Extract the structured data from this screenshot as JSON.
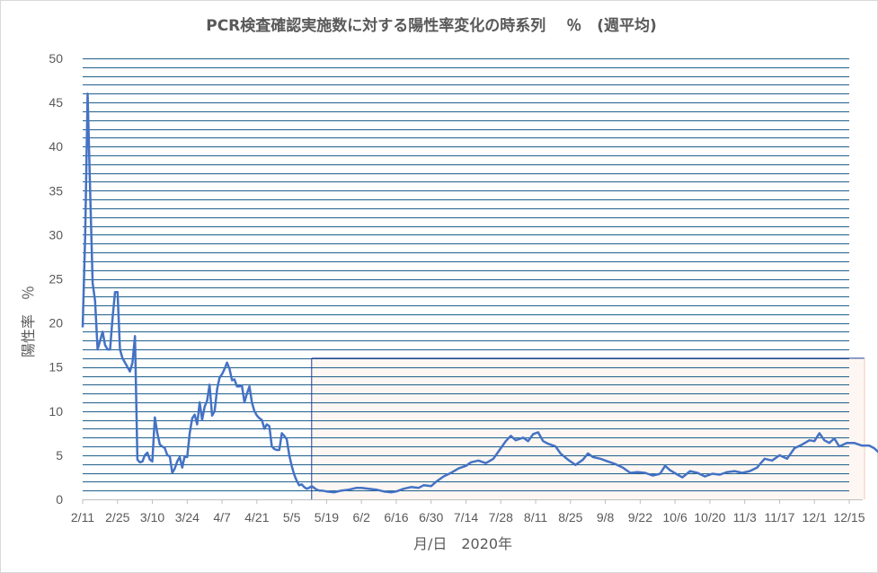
{
  "chart_data": {
    "type": "line",
    "title": "PCR検査確認実施数に対する陽性率変化の時系列　 ％　(週平均)",
    "xlabel": "月/日　2020年",
    "ylabel": "陽性率　％",
    "ylim": [
      0,
      50
    ],
    "y_ticks": [
      0,
      5,
      10,
      15,
      20,
      25,
      30,
      35,
      40,
      45,
      50
    ],
    "x_tick_labels": [
      "2/11",
      "2/25",
      "3/10",
      "3/24",
      "4/7",
      "4/21",
      "5/5",
      "5/19",
      "6/2",
      "6/16",
      "6/30",
      "7/14",
      "7/28",
      "8/11",
      "8/25",
      "9/8",
      "9/22",
      "10/6",
      "10/20",
      "11/3",
      "11/17",
      "12/1",
      "12/15"
    ],
    "x_start_date": "2020-02-11",
    "grid": "horizontal lines every 1",
    "highlight_region": {
      "from": "2020-05-13",
      "to": "2020-12-15",
      "ymax": 16
    },
    "colors": {
      "line": "#4472C4",
      "grid": "#1F5F8B",
      "highlight_fill": "#FDF6F2",
      "highlight_border": "#1F3A93",
      "text": "#595959"
    },
    "series": [
      {
        "name": "",
        "points": [
          [
            "2020-02-11",
            19.5
          ],
          [
            "2020-02-12",
            30.0
          ],
          [
            "2020-02-13",
            46.0
          ],
          [
            "2020-02-14",
            35.0
          ],
          [
            "2020-02-15",
            24.5
          ],
          [
            "2020-02-16",
            22.5
          ],
          [
            "2020-02-17",
            17.0
          ],
          [
            "2020-02-18",
            18.0
          ],
          [
            "2020-02-19",
            19.0
          ],
          [
            "2020-02-20",
            17.5
          ],
          [
            "2020-02-21",
            17.0
          ],
          [
            "2020-02-22",
            17.0
          ],
          [
            "2020-02-23",
            20.5
          ],
          [
            "2020-02-24",
            23.5
          ],
          [
            "2020-02-25",
            23.5
          ],
          [
            "2020-02-26",
            17.0
          ],
          [
            "2020-02-27",
            16.0
          ],
          [
            "2020-02-28",
            15.5
          ],
          [
            "2020-02-29",
            15.0
          ],
          [
            "2020-03-01",
            14.5
          ],
          [
            "2020-03-02",
            15.5
          ],
          [
            "2020-03-03",
            18.5
          ],
          [
            "2020-03-04",
            4.5
          ],
          [
            "2020-03-05",
            4.2
          ],
          [
            "2020-03-06",
            4.3
          ],
          [
            "2020-03-07",
            5.0
          ],
          [
            "2020-03-08",
            5.3
          ],
          [
            "2020-03-09",
            4.5
          ],
          [
            "2020-03-10",
            4.3
          ],
          [
            "2020-03-11",
            9.3
          ],
          [
            "2020-03-12",
            7.5
          ],
          [
            "2020-03-13",
            6.2
          ],
          [
            "2020-03-14",
            6.0
          ],
          [
            "2020-03-15",
            5.8
          ],
          [
            "2020-03-16",
            5.0
          ],
          [
            "2020-03-17",
            4.9
          ],
          [
            "2020-03-18",
            3.0
          ],
          [
            "2020-03-19",
            3.5
          ],
          [
            "2020-03-20",
            4.3
          ],
          [
            "2020-03-21",
            4.8
          ],
          [
            "2020-03-22",
            3.6
          ],
          [
            "2020-03-23",
            4.9
          ],
          [
            "2020-03-24",
            4.8
          ],
          [
            "2020-03-25",
            7.5
          ],
          [
            "2020-03-26",
            9.2
          ],
          [
            "2020-03-27",
            9.6
          ],
          [
            "2020-03-28",
            8.5
          ],
          [
            "2020-03-29",
            11.0
          ],
          [
            "2020-03-30",
            9.0
          ],
          [
            "2020-03-31",
            10.5
          ],
          [
            "2020-04-01",
            11.2
          ],
          [
            "2020-04-02",
            13.0
          ],
          [
            "2020-04-03",
            9.5
          ],
          [
            "2020-04-04",
            10.0
          ],
          [
            "2020-04-05",
            12.5
          ],
          [
            "2020-04-06",
            13.8
          ],
          [
            "2020-04-07",
            14.2
          ],
          [
            "2020-04-08",
            14.8
          ],
          [
            "2020-04-09",
            15.5
          ],
          [
            "2020-04-10",
            14.8
          ],
          [
            "2020-04-11",
            13.5
          ],
          [
            "2020-04-12",
            13.6
          ],
          [
            "2020-04-13",
            12.8
          ],
          [
            "2020-04-14",
            12.8
          ],
          [
            "2020-04-15",
            12.9
          ],
          [
            "2020-04-16",
            11.0
          ],
          [
            "2020-04-17",
            12.0
          ],
          [
            "2020-04-18",
            12.8
          ],
          [
            "2020-04-19",
            11.0
          ],
          [
            "2020-04-20",
            10.0
          ],
          [
            "2020-04-21",
            9.5
          ],
          [
            "2020-04-22",
            9.2
          ],
          [
            "2020-04-23",
            9.0
          ],
          [
            "2020-04-24",
            8.0
          ],
          [
            "2020-04-25",
            8.5
          ],
          [
            "2020-04-26",
            8.3
          ],
          [
            "2020-04-27",
            6.0
          ],
          [
            "2020-04-28",
            5.7
          ],
          [
            "2020-04-29",
            5.6
          ],
          [
            "2020-04-30",
            5.6
          ],
          [
            "2020-05-01",
            7.5
          ],
          [
            "2020-05-02",
            7.2
          ],
          [
            "2020-05-03",
            6.8
          ],
          [
            "2020-05-04",
            5.0
          ],
          [
            "2020-05-05",
            3.8
          ],
          [
            "2020-05-06",
            2.8
          ],
          [
            "2020-05-07",
            2.1
          ],
          [
            "2020-05-08",
            1.6
          ],
          [
            "2020-05-09",
            1.7
          ],
          [
            "2020-05-10",
            1.4
          ],
          [
            "2020-05-11",
            1.2
          ],
          [
            "2020-05-12",
            1.3
          ],
          [
            "2020-05-13",
            1.5
          ],
          [
            "2020-05-14",
            1.3
          ],
          [
            "2020-05-15",
            1.1
          ],
          [
            "2020-05-16",
            1.0
          ],
          [
            "2020-05-17",
            1.0
          ],
          [
            "2020-05-19",
            0.9
          ],
          [
            "2020-05-22",
            0.8
          ],
          [
            "2020-05-25",
            1.0
          ],
          [
            "2020-05-28",
            1.1
          ],
          [
            "2020-05-31",
            1.3
          ],
          [
            "2020-06-02",
            1.3
          ],
          [
            "2020-06-05",
            1.2
          ],
          [
            "2020-06-08",
            1.1
          ],
          [
            "2020-06-11",
            0.9
          ],
          [
            "2020-06-14",
            0.8
          ],
          [
            "2020-06-16",
            0.9
          ],
          [
            "2020-06-19",
            1.2
          ],
          [
            "2020-06-22",
            1.4
          ],
          [
            "2020-06-25",
            1.3
          ],
          [
            "2020-06-27",
            1.6
          ],
          [
            "2020-06-30",
            1.5
          ],
          [
            "2020-07-02",
            2.0
          ],
          [
            "2020-07-05",
            2.6
          ],
          [
            "2020-07-08",
            3.0
          ],
          [
            "2020-07-11",
            3.5
          ],
          [
            "2020-07-14",
            3.8
          ],
          [
            "2020-07-16",
            4.2
          ],
          [
            "2020-07-19",
            4.4
          ],
          [
            "2020-07-22",
            4.1
          ],
          [
            "2020-07-25",
            4.6
          ],
          [
            "2020-07-28",
            5.8
          ],
          [
            "2020-07-30",
            6.6
          ],
          [
            "2020-08-01",
            7.2
          ],
          [
            "2020-08-03",
            6.7
          ],
          [
            "2020-08-06",
            7.0
          ],
          [
            "2020-08-08",
            6.6
          ],
          [
            "2020-08-10",
            7.4
          ],
          [
            "2020-08-12",
            7.6
          ],
          [
            "2020-08-14",
            6.6
          ],
          [
            "2020-08-16",
            6.3
          ],
          [
            "2020-08-19",
            6.0
          ],
          [
            "2020-08-21",
            5.2
          ],
          [
            "2020-08-24",
            4.5
          ],
          [
            "2020-08-27",
            3.9
          ],
          [
            "2020-08-30",
            4.5
          ],
          [
            "2020-09-01",
            5.2
          ],
          [
            "2020-09-03",
            4.8
          ],
          [
            "2020-09-06",
            4.6
          ],
          [
            "2020-09-09",
            4.3
          ],
          [
            "2020-09-12",
            4.0
          ],
          [
            "2020-09-15",
            3.6
          ],
          [
            "2020-09-18",
            3.0
          ],
          [
            "2020-09-21",
            3.1
          ],
          [
            "2020-09-24",
            3.0
          ],
          [
            "2020-09-27",
            2.7
          ],
          [
            "2020-09-30",
            2.9
          ],
          [
            "2020-10-02",
            3.8
          ],
          [
            "2020-10-04",
            3.3
          ],
          [
            "2020-10-07",
            2.8
          ],
          [
            "2020-10-09",
            2.5
          ],
          [
            "2020-10-12",
            3.2
          ],
          [
            "2020-10-15",
            3.0
          ],
          [
            "2020-10-18",
            2.6
          ],
          [
            "2020-10-21",
            2.9
          ],
          [
            "2020-10-24",
            2.8
          ],
          [
            "2020-10-27",
            3.1
          ],
          [
            "2020-10-30",
            3.2
          ],
          [
            "2020-11-02",
            3.0
          ],
          [
            "2020-11-05",
            3.2
          ],
          [
            "2020-11-08",
            3.6
          ],
          [
            "2020-11-11",
            4.6
          ],
          [
            "2020-11-14",
            4.4
          ],
          [
            "2020-11-17",
            5.0
          ],
          [
            "2020-11-20",
            4.6
          ],
          [
            "2020-11-23",
            5.8
          ],
          [
            "2020-11-26",
            6.2
          ],
          [
            "2020-11-29",
            6.7
          ],
          [
            "2020-12-01",
            6.6
          ],
          [
            "2020-12-03",
            7.5
          ],
          [
            "2020-12-05",
            6.7
          ],
          [
            "2020-12-07",
            6.4
          ],
          [
            "2020-12-09",
            6.9
          ],
          [
            "2020-12-11",
            6.0
          ],
          [
            "2020-12-14",
            6.4
          ],
          [
            "2020-12-17",
            6.4
          ],
          [
            "2020-12-20",
            6.1
          ],
          [
            "2020-12-23",
            6.1
          ],
          [
            "2020-12-25",
            5.8
          ],
          [
            "2020-12-27",
            5.3
          ],
          [
            "2020-12-29",
            5.8
          ]
        ]
      }
    ]
  }
}
